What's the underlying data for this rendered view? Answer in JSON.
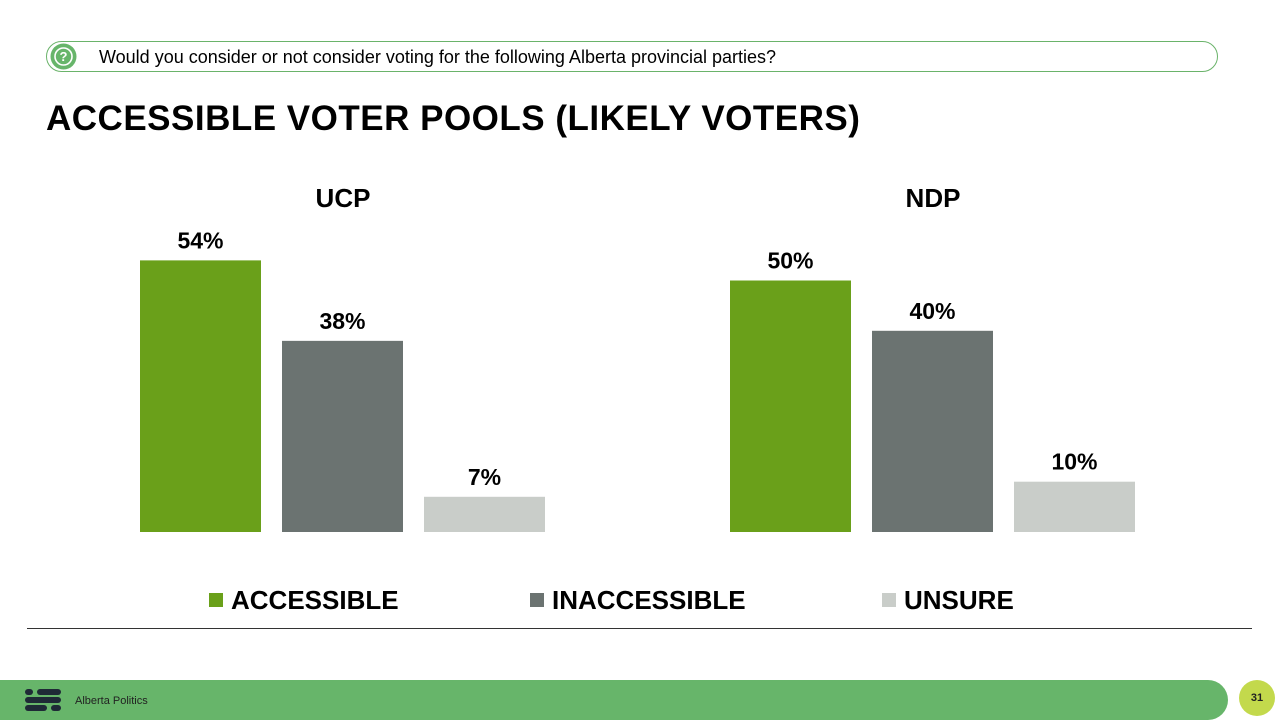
{
  "question": {
    "icon": "question-icon",
    "text": "Would you consider or not consider voting for the following Alberta provincial parties?"
  },
  "title": "ACCESSIBLE VOTER POOLS (LIKELY VOTERS)",
  "colors": {
    "accent_green": "#6aa01a",
    "dark_gray": "#6b7371",
    "light_gray": "#c9cdc9",
    "footer_green": "#67b56a",
    "badge_green": "#c3d94c",
    "outline_green": "#6ab36a"
  },
  "chart_data": [
    {
      "type": "bar",
      "title": "UCP",
      "categories": [
        "ACCESSIBLE",
        "INACCESSIBLE",
        "UNSURE"
      ],
      "values": [
        54,
        38,
        7
      ],
      "data_labels": [
        "54%",
        "38%",
        "7%"
      ],
      "colors": [
        "#6aa01a",
        "#6b7371",
        "#c9cdc9"
      ],
      "ylim": [
        0,
        60
      ],
      "grid": false,
      "legend": "bottom"
    },
    {
      "type": "bar",
      "title": "NDP",
      "categories": [
        "ACCESSIBLE",
        "INACCESSIBLE",
        "UNSURE"
      ],
      "values": [
        50,
        40,
        10
      ],
      "data_labels": [
        "50%",
        "40%",
        "10%"
      ],
      "colors": [
        "#6aa01a",
        "#6b7371",
        "#c9cdc9"
      ],
      "ylim": [
        0,
        60
      ],
      "grid": false,
      "legend": "bottom"
    }
  ],
  "legend": {
    "items": [
      {
        "label": "ACCESSIBLE",
        "color": "#6aa01a"
      },
      {
        "label": "INACCESSIBLE",
        "color": "#6b7371"
      },
      {
        "label": "UNSURE",
        "color": "#c9cdc9"
      }
    ]
  },
  "footer": {
    "logo_icon": "abacus-logo-icon",
    "brand": "Alberta Politics",
    "page_number": "31"
  }
}
